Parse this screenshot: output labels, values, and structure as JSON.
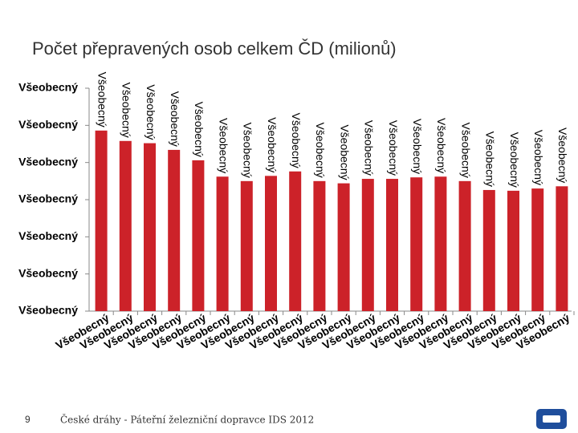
{
  "chart_data": {
    "type": "bar",
    "title": "Počet přepravených osob celkem ČD (milionů)",
    "categories": [
      "Všeobecný",
      "Všeobecný",
      "Všeobecný",
      "Všeobecný",
      "Všeobecný",
      "Všeobecný",
      "Všeobecný",
      "Všeobecný",
      "Všeobecný",
      "Všeobecný",
      "Všeobecný",
      "Všeobecný",
      "Všeobecný",
      "Všeobecný",
      "Všeobecný",
      "Všeobecný",
      "Všeobecný",
      "Všeobecný",
      "Všeobecný",
      "Všeobecný"
    ],
    "values": [
      243,
      229,
      226,
      217,
      203,
      181,
      175,
      182,
      188,
      175,
      172,
      178,
      178,
      180,
      181,
      175,
      163,
      162,
      165,
      168
    ],
    "value_labels": [
      "Všeobecný",
      "Všeobecný",
      "Všeobecný",
      "Všeobecný",
      "Všeobecný",
      "Všeobecný",
      "Všeobecný",
      "Všeobecný",
      "Všeobecný",
      "Všeobecný",
      "Všeobecný",
      "Všeobecný",
      "Všeobecný",
      "Všeobecný",
      "Všeobecný",
      "Všeobecný",
      "Všeobecný",
      "Všeobecný",
      "Všeobecný",
      "Všeobecný"
    ],
    "color": "#cc2229",
    "ylim": [
      0,
      300
    ],
    "yticks": [
      {
        "value": 0,
        "label": "Všeobecný"
      },
      {
        "value": 50,
        "label": "Všeobecný"
      },
      {
        "value": 100,
        "label": "Všeobecný"
      },
      {
        "value": 150,
        "label": "Všeobecný"
      },
      {
        "value": 200,
        "label": "Všeobecný"
      },
      {
        "value": 250,
        "label": "Všeobecný"
      },
      {
        "value": 300,
        "label": "Všeobecný"
      }
    ],
    "grid": false
  },
  "footer": {
    "page": "9",
    "text": "České dráhy - Páteřní železniční dopravce IDS 2012"
  }
}
